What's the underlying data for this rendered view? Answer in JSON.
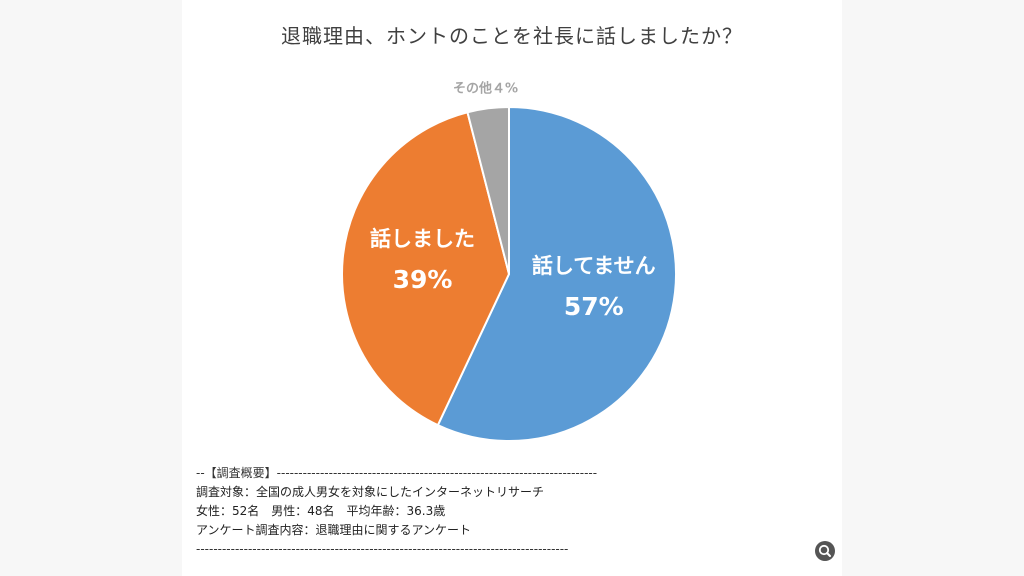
{
  "chart_data": {
    "type": "pie",
    "title": "退職理由、ホントのことを社長に話しましたか？",
    "slices": [
      {
        "label": "話してません",
        "value": 57,
        "value_label": "57%",
        "color": "#5B9BD5",
        "label_color": "#ffffff"
      },
      {
        "label": "話しました",
        "value": 39,
        "value_label": "39%",
        "color": "#ED7D31",
        "label_color": "#ffffff"
      },
      {
        "label": "その他４%",
        "value": 4,
        "value_label": "",
        "color": "#A5A5A5",
        "label_color": "#A5A5A5"
      }
    ],
    "start_angle_deg": 0,
    "direction": "clockwise"
  },
  "survey": {
    "header": "--【調査概要】--------------------------------------------------------------------------",
    "line1": "調査対象：全国の成人男女を対象にしたインターネットリサーチ",
    "line2": "女性：52名　男性：48名　平均年齢：36.3歳",
    "line3": "アンケート調査内容：退職理由に関するアンケート",
    "footer": "--------------------------------------------------------------------------------------"
  },
  "zoom": {
    "icon": "magnifier-icon"
  }
}
